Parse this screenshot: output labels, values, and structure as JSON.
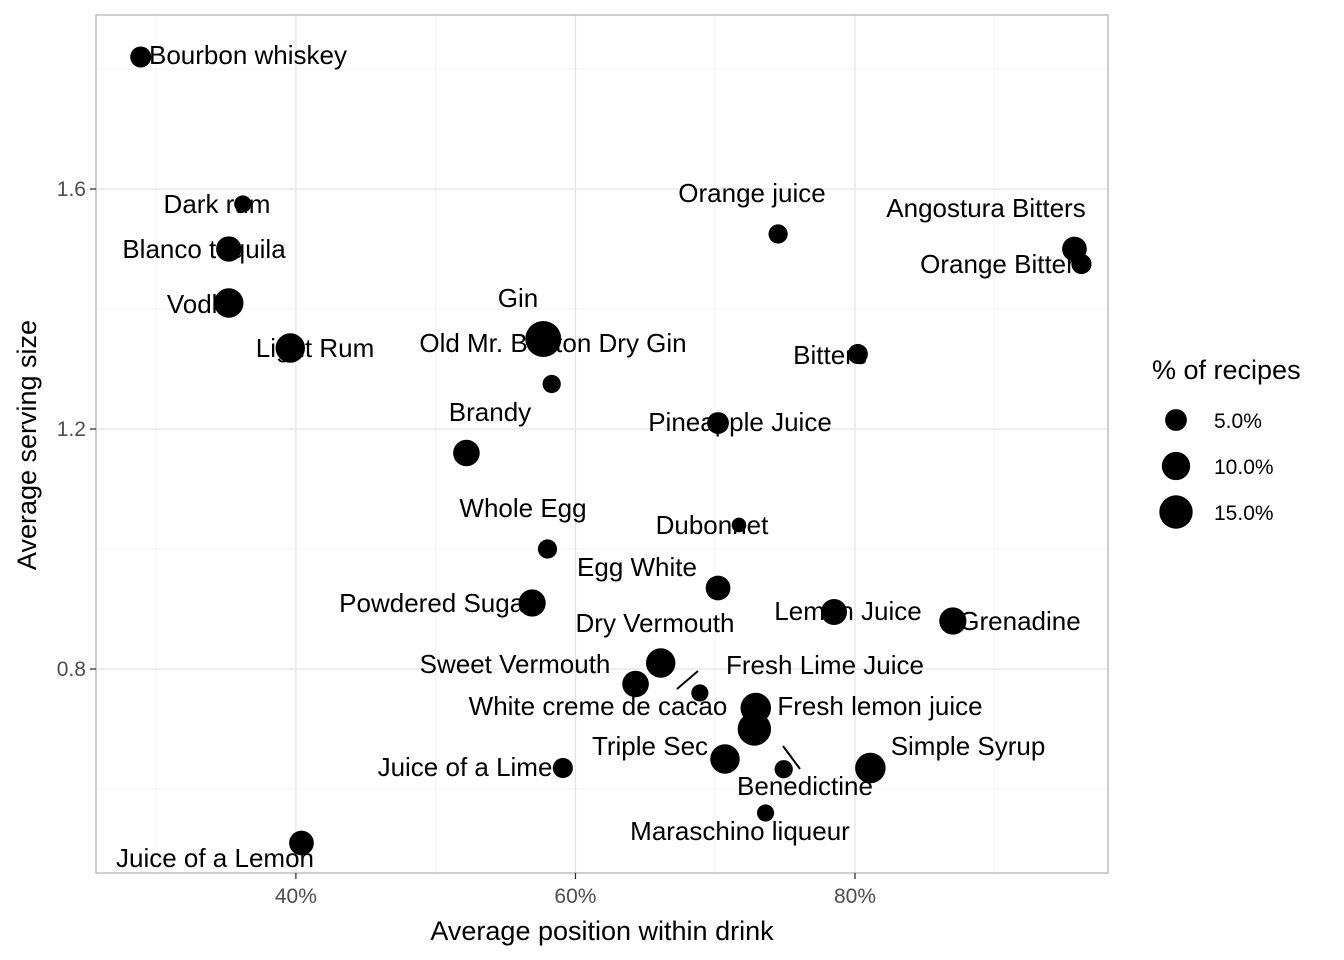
{
  "chart_data": {
    "type": "scatter",
    "xlabel": "Average position within drink",
    "ylabel": "Average serving size",
    "xlim": [
      0.257,
      0.981
    ],
    "ylim": [
      0.46,
      1.89
    ],
    "x_ticks": [
      0.4,
      0.6,
      0.8
    ],
    "x_tick_labels": [
      "40%",
      "60%",
      "80%"
    ],
    "y_ticks": [
      0.8,
      1.2,
      1.6
    ],
    "y_tick_labels": [
      "0.8",
      "1.2",
      "1.6"
    ],
    "grid": true,
    "size_legend": {
      "title": "% of recipes",
      "placement": "right",
      "entries": [
        {
          "label": "5.0%",
          "value": 0.05
        },
        {
          "label": "10.0%",
          "value": 0.1
        },
        {
          "label": "15.0%",
          "value": 0.15
        }
      ]
    },
    "points": [
      {
        "name": "Bourbon whiskey",
        "x": 0.289,
        "y": 1.82,
        "pct": 0.045
      },
      {
        "name": "Dark rum",
        "x": 0.352,
        "y": 1.5,
        "pct": 0.075
      },
      {
        "name": "Blanco tequila",
        "x": 0.362,
        "y": 1.575,
        "pct": 0.025
      },
      {
        "name": "Vodka",
        "x": 0.352,
        "y": 1.41,
        "pct": 0.11
      },
      {
        "name": "Light Rum",
        "x": 0.396,
        "y": 1.335,
        "pct": 0.11
      },
      {
        "name": "Gin",
        "x": 0.577,
        "y": 1.35,
        "pct": 0.18
      },
      {
        "name": "Old Mr. Boston Dry Gin",
        "x": 0.583,
        "y": 1.275,
        "pct": 0.03
      },
      {
        "name": "Brandy",
        "x": 0.522,
        "y": 1.16,
        "pct": 0.085
      },
      {
        "name": "Orange juice",
        "x": 0.745,
        "y": 1.525,
        "pct": 0.035
      },
      {
        "name": "Angostura Bitters",
        "x": 0.957,
        "y": 1.5,
        "pct": 0.07
      },
      {
        "name": "Orange Bitters",
        "x": 0.962,
        "y": 1.475,
        "pct": 0.04
      },
      {
        "name": "Bitters",
        "x": 0.802,
        "y": 1.325,
        "pct": 0.04
      },
      {
        "name": "Pineapple Juice",
        "x": 0.702,
        "y": 1.21,
        "pct": 0.05
      },
      {
        "name": "Dubonnet",
        "x": 0.717,
        "y": 1.04,
        "pct": 0.015
      },
      {
        "name": "Whole Egg",
        "x": 0.58,
        "y": 1.0,
        "pct": 0.035
      },
      {
        "name": "Egg White",
        "x": 0.702,
        "y": 0.935,
        "pct": 0.07
      },
      {
        "name": "Powdered Sugar",
        "x": 0.569,
        "y": 0.91,
        "pct": 0.09
      },
      {
        "name": "Lemon Juice",
        "x": 0.785,
        "y": 0.895,
        "pct": 0.08
      },
      {
        "name": "Grenadine",
        "x": 0.87,
        "y": 0.88,
        "pct": 0.09
      },
      {
        "name": "Dry Vermouth",
        "x": 0.661,
        "y": 0.81,
        "pct": 0.11
      },
      {
        "name": "Sweet Vermouth",
        "x": 0.643,
        "y": 0.775,
        "pct": 0.085
      },
      {
        "name": "White creme de cacao",
        "x": 0.689,
        "y": 0.76,
        "pct": 0.025
      },
      {
        "name": "Fresh Lime Juice",
        "x": 0.729,
        "y": 0.735,
        "pct": 0.12
      },
      {
        "name": "Fresh lemon juice",
        "x": 0.728,
        "y": 0.7,
        "pct": 0.15
      },
      {
        "name": "Triple Sec",
        "x": 0.707,
        "y": 0.65,
        "pct": 0.11
      },
      {
        "name": "Juice of a Lime",
        "x": 0.591,
        "y": 0.635,
        "pct": 0.04
      },
      {
        "name": "Benedictine",
        "x": 0.749,
        "y": 0.633,
        "pct": 0.03
      },
      {
        "name": "Simple Syrup",
        "x": 0.811,
        "y": 0.635,
        "pct": 0.12
      },
      {
        "name": "Maraschino liqueur",
        "x": 0.736,
        "y": 0.56,
        "pct": 0.025
      },
      {
        "name": "Juice of a Lemon",
        "x": 0.404,
        "y": 0.51,
        "pct": 0.07
      }
    ]
  }
}
